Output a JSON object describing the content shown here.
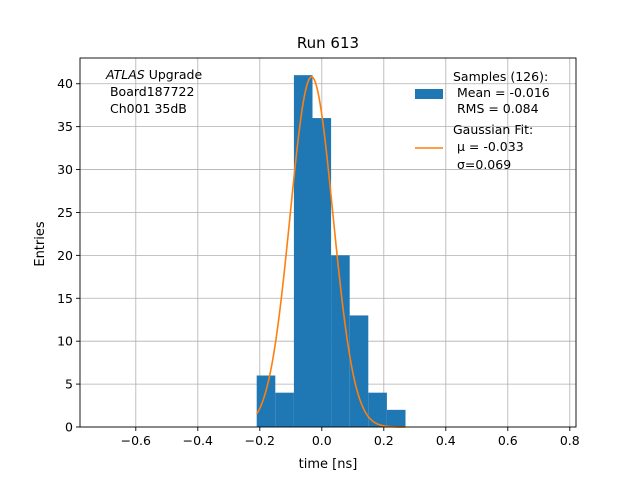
{
  "chart_data": {
    "type": "bar",
    "title": "Run 613",
    "xlabel": "time [ns]",
    "ylabel": "Entries",
    "xlim": [
      -0.78,
      0.82
    ],
    "ylim": [
      0,
      43
    ],
    "grid": true,
    "x_ticks": [
      -0.6,
      -0.4,
      -0.2,
      0.0,
      0.2,
      0.4,
      0.6,
      0.8
    ],
    "x_tick_labels": [
      "−0.6",
      "−0.4",
      "−0.2",
      "0.0",
      "0.2",
      "0.4",
      "0.6",
      "0.8"
    ],
    "y_ticks": [
      0,
      5,
      10,
      15,
      20,
      25,
      30,
      35,
      40
    ],
    "y_tick_labels": [
      "0",
      "5",
      "10",
      "15",
      "20",
      "25",
      "30",
      "35",
      "40"
    ],
    "histogram": {
      "bin_edges": [
        -0.21,
        -0.15,
        -0.09,
        -0.03,
        0.03,
        0.09,
        0.15,
        0.21,
        0.27
      ],
      "counts": [
        6,
        4,
        41,
        36,
        20,
        13,
        4,
        2
      ],
      "color": "#1f77b4"
    },
    "fit": {
      "mu": -0.033,
      "sigma": 0.069,
      "amplitude": 40.8,
      "x_range": [
        -0.21,
        0.27
      ],
      "color": "#ff7f0e"
    },
    "legend": {
      "placement": "top-right",
      "samples_lines": [
        "Samples (126):",
        " Mean = -0.016",
        " RMS = 0.084"
      ],
      "fit_lines": [
        "Gaussian Fit:",
        " μ = -0.033",
        " σ=0.069"
      ]
    },
    "annotation": {
      "atlas_word": "ATLAS",
      "line1_rest": " Upgrade",
      "line2": " Board187722",
      "line3": " Ch001 35dB"
    }
  }
}
